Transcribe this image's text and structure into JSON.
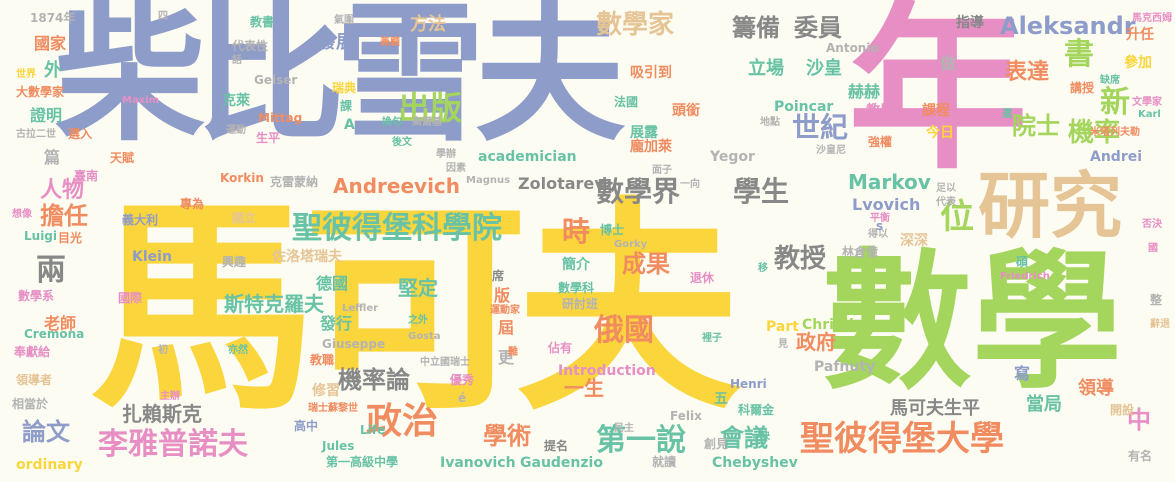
{
  "palette": {
    "blue": "#8e9cc9",
    "pink": "#e78fc4",
    "yellow": "#fbd53c",
    "green": "#a4d65e",
    "orange": "#f08c60",
    "teal": "#68c2a5",
    "tan": "#e5c495",
    "gray": "#b3b3b3",
    "dark": "#888888",
    "lavender": "#a9a9d6"
  },
  "words": [
    {
      "text": "柴比雪夫",
      "color": "blue"
    },
    {
      "text": "年",
      "color": "pink"
    },
    {
      "text": "馬可夫",
      "color": "yellow"
    },
    {
      "text": "數學",
      "color": "green"
    },
    {
      "text": "研究",
      "color": "tan"
    },
    {
      "text": "數學家",
      "color": "tan"
    },
    {
      "text": "籌備",
      "color": "dark"
    },
    {
      "text": "委員",
      "color": "dark"
    },
    {
      "text": "Aleksandr",
      "color": "blue"
    },
    {
      "text": "出版",
      "color": "green"
    },
    {
      "text": "世紀",
      "color": "blue"
    },
    {
      "text": "書",
      "color": "green"
    },
    {
      "text": "新",
      "color": "green"
    },
    {
      "text": "機率",
      "color": "green"
    },
    {
      "text": "院士",
      "color": "green"
    },
    {
      "text": "表達",
      "color": "orange"
    },
    {
      "text": "數學界",
      "color": "dark"
    },
    {
      "text": "學生",
      "color": "dark"
    },
    {
      "text": "位",
      "color": "green"
    },
    {
      "text": "Markov",
      "color": "teal"
    },
    {
      "text": "Lvovich",
      "color": "blue"
    },
    {
      "text": "聖彼得堡科學院",
      "color": "teal"
    },
    {
      "text": "時",
      "color": "orange"
    },
    {
      "text": "Andreevich",
      "color": "orange"
    },
    {
      "text": "成果",
      "color": "orange"
    },
    {
      "text": "教授",
      "color": "dark"
    },
    {
      "text": "俄國",
      "color": "orange"
    },
    {
      "text": "政府",
      "color": "orange"
    },
    {
      "text": "機率論",
      "color": "dark"
    },
    {
      "text": "政治",
      "color": "orange"
    },
    {
      "text": "第一說",
      "color": "teal"
    },
    {
      "text": "學術",
      "color": "orange"
    },
    {
      "text": "會議",
      "color": "teal"
    },
    {
      "text": "聖彼得堡大學",
      "color": "orange"
    },
    {
      "text": "李雅普諾夫",
      "color": "pink"
    },
    {
      "text": "論文",
      "color": "blue"
    },
    {
      "text": "扎賴斯克",
      "color": "dark"
    },
    {
      "text": "斯特克羅夫",
      "color": "teal"
    },
    {
      "text": "堅定",
      "color": "teal"
    },
    {
      "text": "兩",
      "color": "dark"
    },
    {
      "text": "擔任",
      "color": "orange"
    },
    {
      "text": "人物",
      "color": "pink"
    },
    {
      "text": "一生",
      "color": "orange"
    },
    {
      "text": "馬可夫生平",
      "color": "dark"
    },
    {
      "text": "當局",
      "color": "teal"
    },
    {
      "text": "領導",
      "color": "orange"
    },
    {
      "text": "中",
      "color": "pink"
    },
    {
      "text": "寫",
      "color": "blue"
    },
    {
      "text": "Chebyshev",
      "color": "teal"
    },
    {
      "text": "Ivanovich",
      "color": "teal"
    },
    {
      "text": "Gaudenzio",
      "color": "teal"
    },
    {
      "text": "ordinary",
      "color": "yellow"
    },
    {
      "text": "第一高級中學",
      "color": "teal"
    },
    {
      "text": "Zolotarev",
      "color": "dark"
    },
    {
      "text": "academician",
      "color": "teal"
    },
    {
      "text": "Introduction",
      "color": "pink"
    },
    {
      "text": "Christian",
      "color": "green"
    },
    {
      "text": "Pafnuty",
      "color": "gray"
    },
    {
      "text": "Korkin",
      "color": "orange"
    },
    {
      "text": "Klein",
      "color": "blue"
    },
    {
      "text": "Yegor",
      "color": "gray"
    },
    {
      "text": "Poincar",
      "color": "teal"
    },
    {
      "text": "Antonio",
      "color": "gray"
    },
    {
      "text": "Andrei",
      "color": "blue"
    },
    {
      "text": "Henri",
      "color": "blue"
    },
    {
      "text": "Felix",
      "color": "gray"
    },
    {
      "text": "Life",
      "color": "teal"
    },
    {
      "text": "Jules",
      "color": "teal"
    },
    {
      "text": "Part",
      "color": "yellow"
    },
    {
      "text": "Cremona",
      "color": "teal"
    },
    {
      "text": "Giuseppe",
      "color": "gray"
    },
    {
      "text": "Luigi",
      "color": "teal"
    },
    {
      "text": "Geiser",
      "color": "gray"
    },
    {
      "text": "Mittag",
      "color": "orange"
    },
    {
      "text": "Maxim",
      "color": "pink"
    },
    {
      "text": "Leffler",
      "color": "gray"
    },
    {
      "text": "Gosta",
      "color": "gray"
    },
    {
      "text": "Gorky",
      "color": "gray"
    },
    {
      "text": "Magnus",
      "color": "gray"
    },
    {
      "text": "Friedrich",
      "color": "pink"
    },
    {
      "text": "Karl",
      "color": "teal"
    },
    {
      "text": "1874年",
      "color": "gray"
    },
    {
      "text": "國家",
      "color": "orange"
    },
    {
      "text": "大數學家",
      "color": "orange"
    },
    {
      "text": "證明",
      "color": "teal"
    },
    {
      "text": "外",
      "color": "teal"
    },
    {
      "text": "篇",
      "color": "gray"
    },
    {
      "text": "天賦",
      "color": "orange"
    },
    {
      "text": "臺南",
      "color": "pink"
    },
    {
      "text": "義大利",
      "color": "blue"
    },
    {
      "text": "國立",
      "color": "tan"
    },
    {
      "text": "目光",
      "color": "orange"
    },
    {
      "text": "數學系",
      "color": "pink"
    },
    {
      "text": "老師",
      "color": "orange"
    },
    {
      "text": "奉獻給",
      "color": "pink"
    },
    {
      "text": "領導者",
      "color": "tan"
    },
    {
      "text": "相當於",
      "color": "gray"
    },
    {
      "text": "國際",
      "color": "pink"
    },
    {
      "text": "興趣",
      "color": "gray"
    },
    {
      "text": "佐洛塔瑞夫",
      "color": "tan"
    },
    {
      "text": "德國",
      "color": "teal"
    },
    {
      "text": "發行",
      "color": "teal"
    },
    {
      "text": "版",
      "color": "orange"
    },
    {
      "text": "屆",
      "color": "orange"
    },
    {
      "text": "更",
      "color": "gray"
    },
    {
      "text": "修習",
      "color": "tan"
    },
    {
      "text": "優秀",
      "color": "pink"
    },
    {
      "text": "教職",
      "color": "orange"
    },
    {
      "text": "高中",
      "color": "blue"
    },
    {
      "text": "五",
      "color": "teal"
    },
    {
      "text": "科爾金",
      "color": "teal"
    },
    {
      "text": "簡介",
      "color": "teal"
    },
    {
      "text": "數學科",
      "color": "teal"
    },
    {
      "text": "研討班",
      "color": "gray"
    },
    {
      "text": "佔有",
      "color": "pink"
    },
    {
      "text": "退休",
      "color": "pink"
    },
    {
      "text": "林倉億",
      "color": "gray"
    },
    {
      "text": "深深",
      "color": "tan"
    },
    {
      "text": "碩",
      "color": "teal"
    },
    {
      "text": "整",
      "color": "gray"
    },
    {
      "text": "創見",
      "color": "gray"
    },
    {
      "text": "就讀",
      "color": "gray"
    },
    {
      "text": "提名",
      "color": "dark"
    },
    {
      "text": "開設",
      "color": "tan"
    },
    {
      "text": "有名",
      "color": "gray"
    },
    {
      "text": "發展",
      "color": "blue"
    },
    {
      "text": "方法",
      "color": "tan"
    },
    {
      "text": "吸引到",
      "color": "orange"
    },
    {
      "text": "頭銜",
      "color": "orange"
    },
    {
      "text": "立場",
      "color": "teal"
    },
    {
      "text": "沙皇",
      "color": "teal"
    },
    {
      "text": "做",
      "color": "gray"
    },
    {
      "text": "講授",
      "color": "orange"
    },
    {
      "text": "參加",
      "color": "yellow"
    },
    {
      "text": "升任",
      "color": "orange"
    },
    {
      "text": "指導",
      "color": "dark"
    },
    {
      "text": "馬克西姆",
      "color": "pink"
    },
    {
      "text": "赫赫",
      "color": "teal"
    },
    {
      "text": "課程",
      "color": "orange"
    },
    {
      "text": "教學",
      "color": "pink"
    },
    {
      "text": "今日",
      "color": "yellow"
    },
    {
      "text": "展露",
      "color": "teal"
    },
    {
      "text": "龐加萊",
      "color": "orange"
    },
    {
      "text": "強權",
      "color": "orange"
    },
    {
      "text": "克萊",
      "color": "teal"
    },
    {
      "text": "生平",
      "color": "pink"
    },
    {
      "text": "運動",
      "color": "gray"
    },
    {
      "text": "選入",
      "color": "orange"
    },
    {
      "text": "代表性",
      "color": "gray"
    },
    {
      "text": "教書",
      "color": "teal"
    },
    {
      "text": "法國",
      "color": "teal"
    },
    {
      "text": "四",
      "color": "gray"
    },
    {
      "text": "氣圍",
      "color": "gray"
    },
    {
      "text": "兼顧",
      "color": "orange"
    },
    {
      "text": "話",
      "color": "gray"
    },
    {
      "text": "世界",
      "color": "yellow"
    },
    {
      "text": "古拉二世",
      "color": "gray"
    },
    {
      "text": "課",
      "color": "teal"
    },
    {
      "text": "瑞典",
      "color": "yellow"
    },
    {
      "text": "換句",
      "color": "teal"
    },
    {
      "text": "高爾基",
      "color": "gray"
    },
    {
      "text": "後文",
      "color": "teal"
    },
    {
      "text": "學辦",
      "color": "gray"
    },
    {
      "text": "因素",
      "color": "gray"
    },
    {
      "text": "專為",
      "color": "orange"
    },
    {
      "text": "克雷蒙納",
      "color": "gray"
    },
    {
      "text": "想像",
      "color": "pink"
    },
    {
      "text": "A",
      "color": "teal"
    },
    {
      "text": "之外",
      "color": "teal"
    },
    {
      "text": "席",
      "color": "dark"
    },
    {
      "text": "移",
      "color": "teal"
    },
    {
      "text": "得以",
      "color": "gray"
    },
    {
      "text": "否決",
      "color": "pink"
    },
    {
      "text": "裡子",
      "color": "teal"
    },
    {
      "text": "見",
      "color": "gray"
    },
    {
      "text": "快",
      "color": "teal"
    },
    {
      "text": "民主",
      "color": "gray"
    },
    {
      "text": "初",
      "color": "gray"
    },
    {
      "text": "亦然",
      "color": "teal"
    },
    {
      "text": "主辦",
      "color": "pink"
    },
    {
      "text": "瑞士蘇黎世",
      "color": "orange"
    },
    {
      "text": "中立國瑞士",
      "color": "gray"
    },
    {
      "text": "米塔列夫勒",
      "color": "orange"
    },
    {
      "text": "文學家",
      "color": "pink"
    },
    {
      "text": "缺席",
      "color": "teal"
    },
    {
      "text": "選",
      "color": "teal"
    },
    {
      "text": "地點",
      "color": "gray"
    },
    {
      "text": "沙皇尼",
      "color": "gray"
    },
    {
      "text": "足以",
      "color": "gray"
    },
    {
      "text": "代表",
      "color": "gray"
    },
    {
      "text": "平衡",
      "color": "pink"
    },
    {
      "text": "面子",
      "color": "gray"
    },
    {
      "text": "一向",
      "color": "gray"
    },
    {
      "text": "博士",
      "color": "teal"
    },
    {
      "text": "運動家",
      "color": "orange"
    },
    {
      "text": "難",
      "color": "orange"
    },
    {
      "text": "辭退",
      "color": "tan"
    },
    {
      "text": "國",
      "color": "pink"
    },
    {
      "text": "s",
      "color": "blue"
    },
    {
      "text": "é",
      "color": "gray"
    }
  ]
}
